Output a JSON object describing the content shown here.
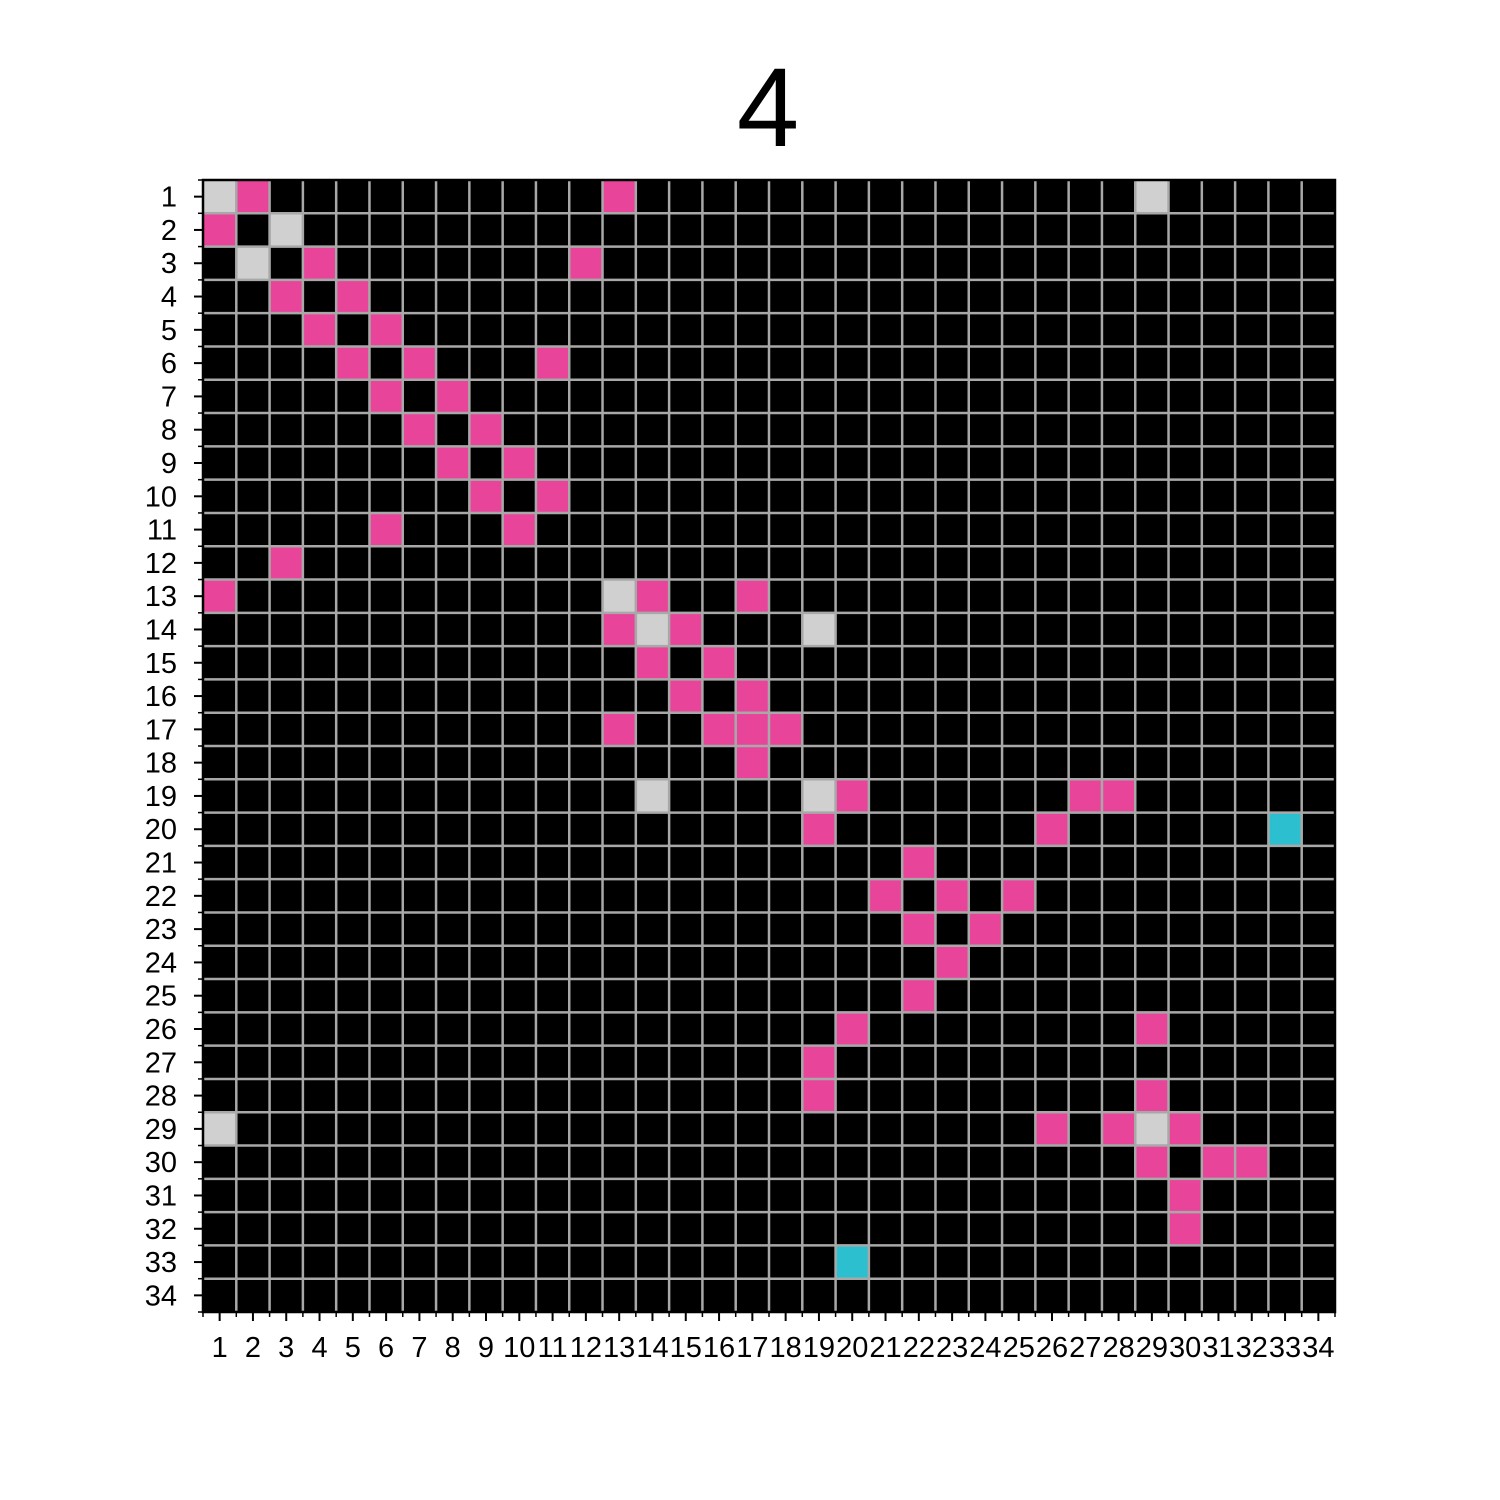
{
  "chart_data": {
    "type": "heatmap",
    "title": "4",
    "xlabel": "",
    "ylabel": "",
    "x_ticks": [
      "1",
      "2",
      "3",
      "4",
      "5",
      "6",
      "7",
      "8",
      "9",
      "10",
      "11",
      "12",
      "13",
      "14",
      "15",
      "16",
      "17",
      "18",
      "19",
      "20",
      "21",
      "22",
      "23",
      "24",
      "25",
      "26",
      "27",
      "28",
      "29",
      "30",
      "31",
      "32",
      "33",
      "34"
    ],
    "y_ticks": [
      "1",
      "2",
      "3",
      "4",
      "5",
      "6",
      "7",
      "8",
      "9",
      "10",
      "11",
      "12",
      "13",
      "14",
      "15",
      "16",
      "17",
      "18",
      "19",
      "20",
      "21",
      "22",
      "23",
      "24",
      "25",
      "26",
      "27",
      "28",
      "29",
      "30",
      "31",
      "32",
      "33",
      "34"
    ],
    "grid": true,
    "colors": {
      "background": "#000000",
      "pink": "#e8449a",
      "gray": "#d0d0d0",
      "cyan": "#2bbfcf",
      "gridline": "#a8a8a8"
    },
    "cells": [
      {
        "row": 1,
        "col": 1,
        "color": "gray"
      },
      {
        "row": 1,
        "col": 2,
        "color": "pink"
      },
      {
        "row": 1,
        "col": 13,
        "color": "pink"
      },
      {
        "row": 1,
        "col": 29,
        "color": "gray"
      },
      {
        "row": 2,
        "col": 1,
        "color": "pink"
      },
      {
        "row": 2,
        "col": 3,
        "color": "gray"
      },
      {
        "row": 3,
        "col": 2,
        "color": "gray"
      },
      {
        "row": 3,
        "col": 4,
        "color": "pink"
      },
      {
        "row": 3,
        "col": 12,
        "color": "pink"
      },
      {
        "row": 4,
        "col": 3,
        "color": "pink"
      },
      {
        "row": 4,
        "col": 5,
        "color": "pink"
      },
      {
        "row": 5,
        "col": 4,
        "color": "pink"
      },
      {
        "row": 5,
        "col": 6,
        "color": "pink"
      },
      {
        "row": 6,
        "col": 5,
        "color": "pink"
      },
      {
        "row": 6,
        "col": 7,
        "color": "pink"
      },
      {
        "row": 6,
        "col": 11,
        "color": "pink"
      },
      {
        "row": 7,
        "col": 6,
        "color": "pink"
      },
      {
        "row": 7,
        "col": 8,
        "color": "pink"
      },
      {
        "row": 8,
        "col": 7,
        "color": "pink"
      },
      {
        "row": 8,
        "col": 9,
        "color": "pink"
      },
      {
        "row": 9,
        "col": 8,
        "color": "pink"
      },
      {
        "row": 9,
        "col": 10,
        "color": "pink"
      },
      {
        "row": 10,
        "col": 9,
        "color": "pink"
      },
      {
        "row": 10,
        "col": 11,
        "color": "pink"
      },
      {
        "row": 11,
        "col": 6,
        "color": "pink"
      },
      {
        "row": 11,
        "col": 10,
        "color": "pink"
      },
      {
        "row": 12,
        "col": 3,
        "color": "pink"
      },
      {
        "row": 13,
        "col": 1,
        "color": "pink"
      },
      {
        "row": 13,
        "col": 13,
        "color": "gray"
      },
      {
        "row": 13,
        "col": 14,
        "color": "pink"
      },
      {
        "row": 13,
        "col": 17,
        "color": "pink"
      },
      {
        "row": 14,
        "col": 13,
        "color": "pink"
      },
      {
        "row": 14,
        "col": 14,
        "color": "gray"
      },
      {
        "row": 14,
        "col": 15,
        "color": "pink"
      },
      {
        "row": 14,
        "col": 19,
        "color": "gray"
      },
      {
        "row": 15,
        "col": 14,
        "color": "pink"
      },
      {
        "row": 15,
        "col": 16,
        "color": "pink"
      },
      {
        "row": 16,
        "col": 15,
        "color": "pink"
      },
      {
        "row": 16,
        "col": 17,
        "color": "pink"
      },
      {
        "row": 17,
        "col": 13,
        "color": "pink"
      },
      {
        "row": 17,
        "col": 16,
        "color": "pink"
      },
      {
        "row": 17,
        "col": 17,
        "color": "pink"
      },
      {
        "row": 17,
        "col": 18,
        "color": "pink"
      },
      {
        "row": 18,
        "col": 17,
        "color": "pink"
      },
      {
        "row": 19,
        "col": 14,
        "color": "gray"
      },
      {
        "row": 19,
        "col": 19,
        "color": "gray"
      },
      {
        "row": 19,
        "col": 20,
        "color": "pink"
      },
      {
        "row": 19,
        "col": 27,
        "color": "pink"
      },
      {
        "row": 19,
        "col": 28,
        "color": "pink"
      },
      {
        "row": 20,
        "col": 19,
        "color": "pink"
      },
      {
        "row": 20,
        "col": 26,
        "color": "pink"
      },
      {
        "row": 20,
        "col": 33,
        "color": "cyan"
      },
      {
        "row": 21,
        "col": 22,
        "color": "pink"
      },
      {
        "row": 22,
        "col": 21,
        "color": "pink"
      },
      {
        "row": 22,
        "col": 23,
        "color": "pink"
      },
      {
        "row": 22,
        "col": 25,
        "color": "pink"
      },
      {
        "row": 23,
        "col": 22,
        "color": "pink"
      },
      {
        "row": 23,
        "col": 24,
        "color": "pink"
      },
      {
        "row": 24,
        "col": 23,
        "color": "pink"
      },
      {
        "row": 25,
        "col": 22,
        "color": "pink"
      },
      {
        "row": 26,
        "col": 20,
        "color": "pink"
      },
      {
        "row": 26,
        "col": 29,
        "color": "pink"
      },
      {
        "row": 27,
        "col": 19,
        "color": "pink"
      },
      {
        "row": 28,
        "col": 19,
        "color": "pink"
      },
      {
        "row": 28,
        "col": 29,
        "color": "pink"
      },
      {
        "row": 29,
        "col": 1,
        "color": "gray"
      },
      {
        "row": 29,
        "col": 26,
        "color": "pink"
      },
      {
        "row": 29,
        "col": 28,
        "color": "pink"
      },
      {
        "row": 29,
        "col": 29,
        "color": "gray"
      },
      {
        "row": 29,
        "col": 30,
        "color": "pink"
      },
      {
        "row": 30,
        "col": 29,
        "color": "pink"
      },
      {
        "row": 30,
        "col": 31,
        "color": "pink"
      },
      {
        "row": 30,
        "col": 32,
        "color": "pink"
      },
      {
        "row": 31,
        "col": 30,
        "color": "pink"
      },
      {
        "row": 32,
        "col": 30,
        "color": "pink"
      },
      {
        "row": 33,
        "col": 20,
        "color": "cyan"
      }
    ]
  }
}
